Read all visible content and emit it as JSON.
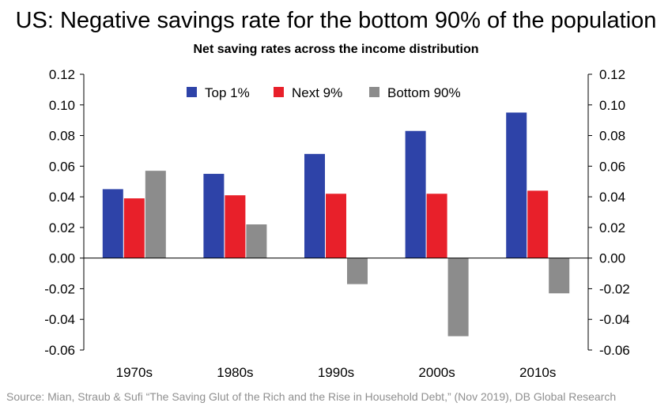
{
  "title": "US: Negative savings rate for the bottom 90% of the population",
  "source": "Source: Mian, Straub & Sufi “The Saving Glut of the Rich and the Rise in Household Debt,” (Nov 2019), DB Global Research",
  "colors": {
    "top1": "#2e43a8",
    "next9": "#e8202a",
    "bottom90": "#8c8c8c"
  },
  "chart_data": {
    "type": "bar",
    "title": "Net saving rates across the income distribution",
    "categories": [
      "1970s",
      "1980s",
      "1990s",
      "2000s",
      "2010s"
    ],
    "series": [
      {
        "name": "Top 1%",
        "values": [
          0.045,
          0.055,
          0.068,
          0.083,
          0.095
        ]
      },
      {
        "name": "Next 9%",
        "values": [
          0.039,
          0.041,
          0.042,
          0.042,
          0.044
        ]
      },
      {
        "name": "Bottom 90%",
        "values": [
          0.057,
          0.022,
          -0.017,
          -0.051,
          -0.023
        ]
      }
    ],
    "ylim": [
      -0.06,
      0.12
    ],
    "yticks": [
      "0.12",
      "0.10",
      "0.08",
      "0.06",
      "0.04",
      "0.02",
      "0.00",
      "-0.02",
      "-0.04",
      "-0.06"
    ],
    "secondary_axis": true,
    "grid": false,
    "legend_position": "top"
  }
}
